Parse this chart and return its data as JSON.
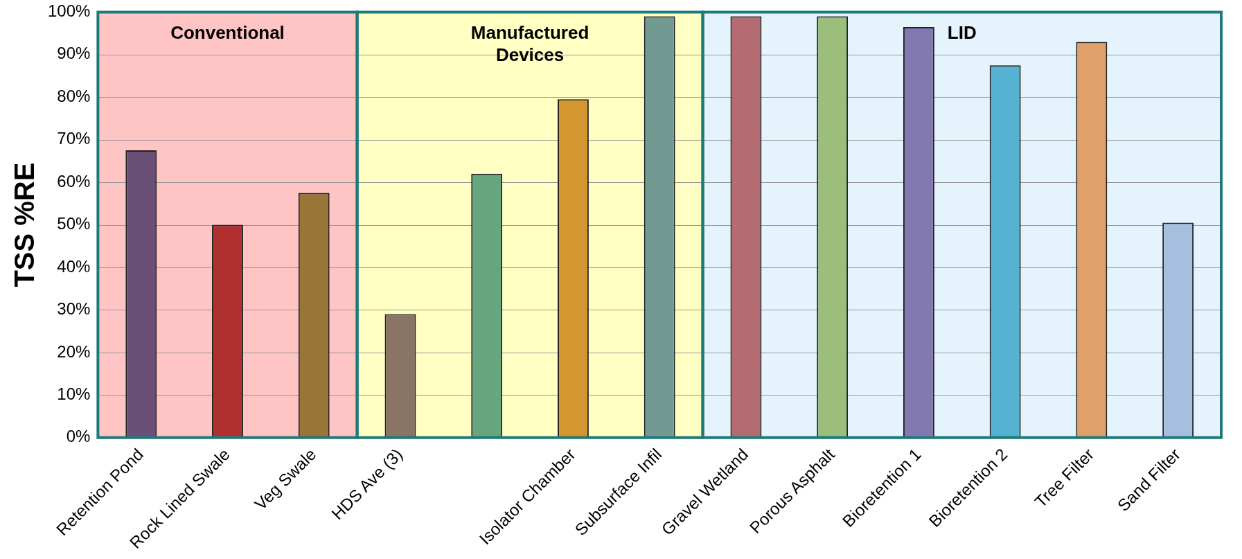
{
  "chart_data": {
    "type": "bar",
    "ylabel": "TSS %RE",
    "categories": [
      "Retention Pond",
      "Rock Lined Swale",
      "Veg Swale",
      "HDS Ave (3)",
      null,
      "Isolator Chamber",
      "Subsurface Infil",
      "Gravel Wetland",
      "Porous Asphalt",
      "Bioretention 1",
      "Bioretention 2",
      "Tree Filter",
      "Sand Filter"
    ],
    "values": [
      67.5,
      50,
      57.5,
      29,
      62,
      79.5,
      99,
      99,
      99,
      96.5,
      87.5,
      93,
      50.5
    ],
    "colors": [
      "#6a4f77",
      "#b03030",
      "#9a7538",
      "#8a7565",
      "#66a67e",
      "#d4962e",
      "#739a92",
      "#b56b72",
      "#9bbf7b",
      "#8279b3",
      "#56b2d2",
      "#e0a06a",
      "#a6bfdf"
    ],
    "ylim": [
      0,
      100
    ],
    "yticks": [
      {
        "value": 0,
        "label": "0%"
      },
      {
        "value": 10,
        "label": "10%"
      },
      {
        "value": 20,
        "label": "20%"
      },
      {
        "value": 30,
        "label": "30%"
      },
      {
        "value": 40,
        "label": "40%"
      },
      {
        "value": 50,
        "label": "50%"
      },
      {
        "value": 60,
        "label": "60%"
      },
      {
        "value": 70,
        "label": "70%"
      },
      {
        "value": 80,
        "label": "80%"
      },
      {
        "value": 90,
        "label": "90%"
      },
      {
        "value": 100,
        "label": "100%"
      }
    ],
    "grid": "y",
    "bands": [
      {
        "axis": "x",
        "from": "Retention Pond",
        "to": "Veg Swale",
        "label": "Conventional",
        "color": "#ffc4c4"
      },
      {
        "axis": "x",
        "from": "HDS Ave (3)",
        "to": "Subsurface Infil",
        "label": "Manufactured Devices",
        "color": "#ffffc4"
      },
      {
        "axis": "x",
        "from": "Gravel Wetland",
        "to": "Sand Filter",
        "label": "LID",
        "color": "#e4f3fc"
      }
    ]
  }
}
